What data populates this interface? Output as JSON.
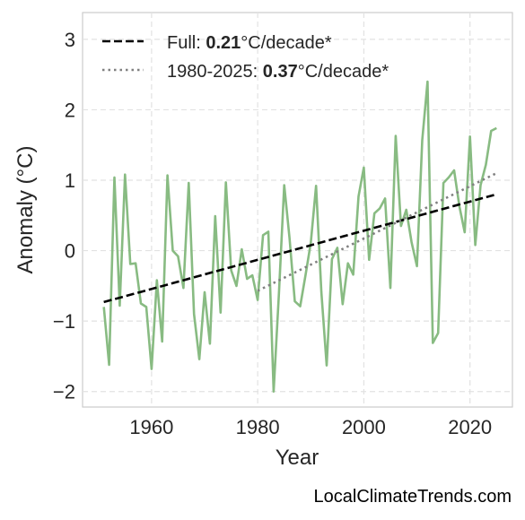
{
  "chart_data": {
    "type": "line",
    "xlabel": "Year",
    "ylabel": "Anomaly (°C)",
    "xlim": [
      1947,
      2028
    ],
    "ylim": [
      -2.22,
      3.38
    ],
    "xticks": [
      1960,
      1980,
      2000,
      2020
    ],
    "yticks": [
      -2,
      -1,
      0,
      1,
      2,
      3
    ],
    "ytick_labels": [
      "−2",
      "−1",
      "0",
      "1",
      "2",
      "3"
    ],
    "grid": true,
    "legend_position": "top-left",
    "series": [
      {
        "color": "#88bb82",
        "x": [
          1951,
          1952,
          1953,
          1954,
          1955,
          1956,
          1957,
          1958,
          1959,
          1960,
          1961,
          1962,
          1963,
          1964,
          1965,
          1966,
          1967,
          1968,
          1969,
          1970,
          1971,
          1972,
          1973,
          1974,
          1975,
          1976,
          1977,
          1978,
          1979,
          1980,
          1981,
          1982,
          1983,
          1984,
          1985,
          1986,
          1987,
          1988,
          1989,
          1990,
          1991,
          1992,
          1993,
          1994,
          1995,
          1996,
          1997,
          1998,
          1999,
          2000,
          2001,
          2002,
          2003,
          2004,
          2005,
          2006,
          2007,
          2008,
          2009,
          2010,
          2011,
          2012,
          2013,
          2014,
          2015,
          2016,
          2017,
          2018,
          2019,
          2020,
          2021,
          2022,
          2023,
          2024,
          2025
        ],
        "values": [
          -0.8,
          -1.62,
          1.04,
          -0.78,
          1.08,
          -0.19,
          -0.18,
          -0.75,
          -0.8,
          -1.68,
          -0.42,
          -1.29,
          1.07,
          0.0,
          -0.08,
          -0.53,
          0.96,
          -0.9,
          -1.54,
          -0.59,
          -1.32,
          0.49,
          -0.88,
          0.97,
          -0.28,
          -0.5,
          0.02,
          -0.4,
          -0.35,
          -0.7,
          0.22,
          0.27,
          -2.0,
          -0.61,
          0.93,
          0.18,
          -0.72,
          -0.79,
          -0.35,
          0.11,
          0.92,
          -0.59,
          -1.63,
          -0.12,
          0.04,
          -0.76,
          -0.18,
          -0.34,
          0.77,
          1.18,
          -0.13,
          0.53,
          0.6,
          0.74,
          -0.53,
          1.63,
          0.35,
          0.58,
          0.12,
          -0.22,
          1.57,
          2.4,
          -1.31,
          -1.17,
          0.96,
          1.04,
          1.14,
          0.63,
          0.26,
          1.62,
          0.08,
          0.93,
          1.22,
          1.7,
          1.74
        ]
      }
    ],
    "trend_lines": [
      {
        "label_prefix": "Full: ",
        "label_value": "0.21",
        "label_suffix": "°C/decade*",
        "style": "dashed",
        "color": "#000000",
        "x": [
          1951,
          2025
        ],
        "values": [
          -0.73,
          0.8
        ]
      },
      {
        "label_prefix": "1980-2025: ",
        "label_value": "0.37",
        "label_suffix": "°C/decade*",
        "style": "dotted",
        "color": "#808080",
        "x": [
          1980,
          2025
        ],
        "values": [
          -0.57,
          1.1
        ]
      }
    ]
  },
  "credit": "LocalClimateTrends.com"
}
